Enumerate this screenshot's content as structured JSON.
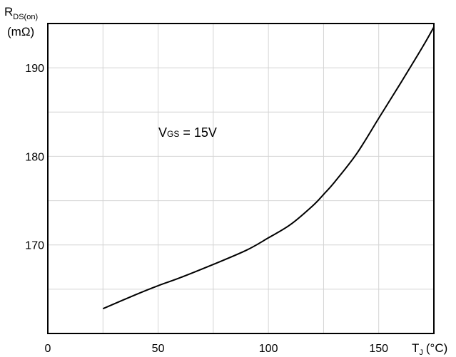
{
  "chart_data": {
    "type": "line",
    "title": "",
    "xlabel": {
      "main": "T",
      "sub": "J",
      "unit": "(°C)"
    },
    "ylabel": {
      "main": "R",
      "sub": "DS(on)",
      "unit": "(mΩ)"
    },
    "xlim": [
      0,
      175
    ],
    "ylim": [
      160,
      195
    ],
    "x_ticks": [
      0,
      50,
      100,
      150
    ],
    "y_ticks": [
      170,
      180,
      190
    ],
    "x_grid": [
      25,
      50,
      75,
      100,
      125,
      150
    ],
    "y_grid": [
      165,
      170,
      175,
      180,
      185,
      190
    ],
    "grid": true,
    "annotation": {
      "main": "V",
      "sub": "GS",
      "rest": " = 15V"
    },
    "series": [
      {
        "x": [
          25,
          40,
          50,
          60,
          75,
          90,
          100,
          110,
          120,
          125,
          130,
          140,
          150,
          160,
          170,
          175
        ],
        "y": [
          162.8,
          164.4,
          165.4,
          166.3,
          167.8,
          169.4,
          170.8,
          172.3,
          174.4,
          175.7,
          177.1,
          180.3,
          184.3,
          188.3,
          192.4,
          194.6
        ]
      }
    ]
  }
}
